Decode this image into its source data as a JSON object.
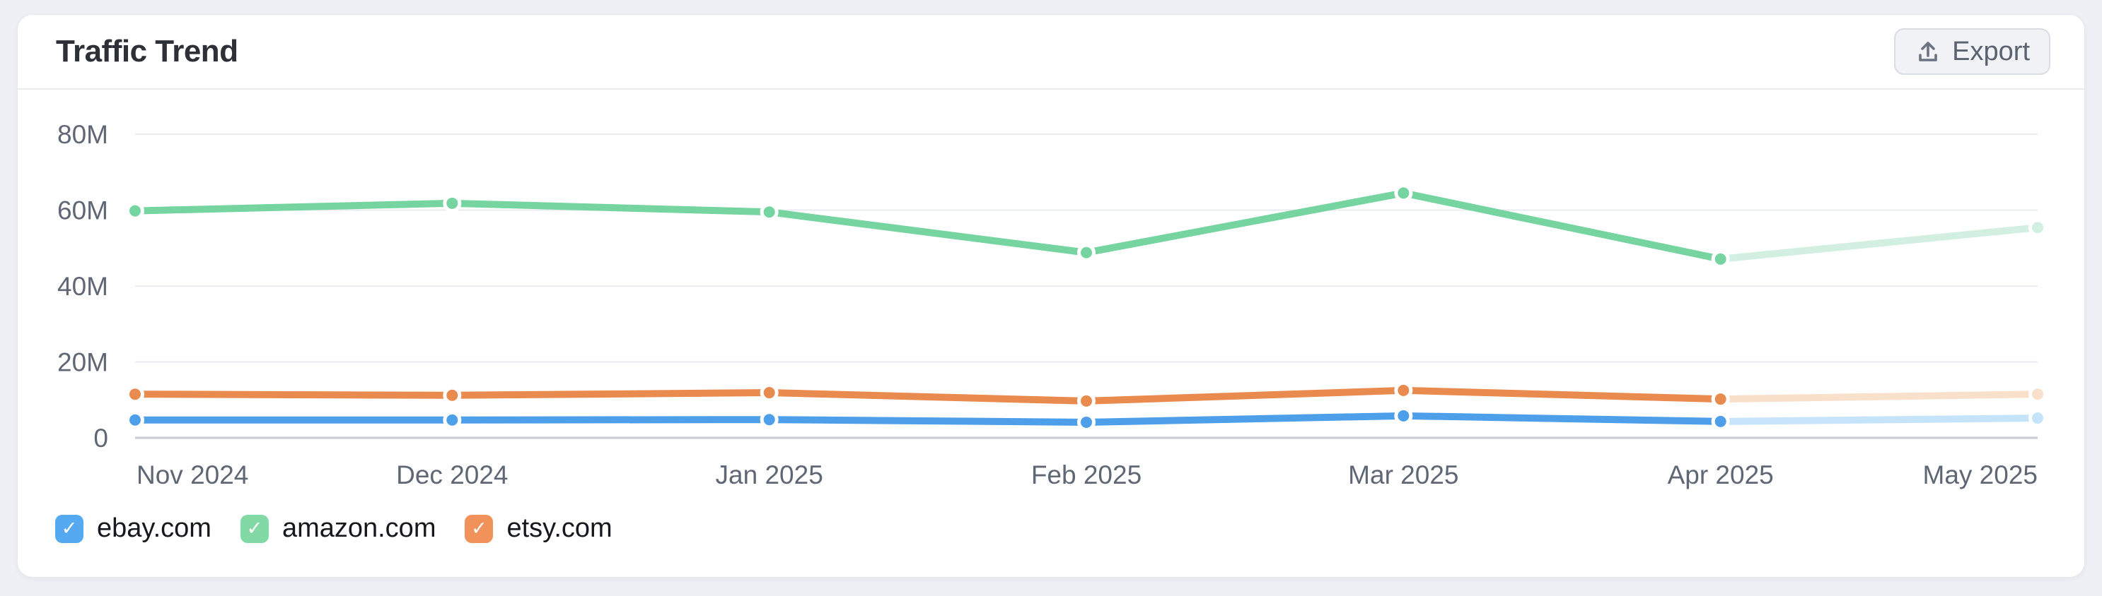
{
  "page": {
    "background_color": "#eef0f5",
    "card_color": "#ffffff"
  },
  "header": {
    "title": "Traffic Trend",
    "export_label": "Export"
  },
  "chart_data": {
    "type": "line",
    "title": "Traffic Trend",
    "x": [
      "Nov 2024",
      "Dec 2024",
      "Jan 2025",
      "Feb 2025",
      "Mar 2025",
      "Apr 2025",
      "May 2025"
    ],
    "y_ticks": [
      "80M",
      "60M",
      "40M",
      "20M",
      "0"
    ],
    "ylim_millions": [
      0,
      80
    ],
    "grid": true,
    "legend_position": "bottom",
    "unit": "visits (millions)",
    "last_point_faded": true,
    "series": [
      {
        "name": "ebay.com",
        "color": "#4d9fe9",
        "faded_color": "#c6e4f9",
        "values_millions": [
          4.7,
          4.7,
          4.8,
          4.1,
          5.8,
          4.3,
          5.2
        ]
      },
      {
        "name": "amazon.com",
        "color": "#76d4a0",
        "faded_color": "#d3efe1",
        "values_millions": [
          59.8,
          61.8,
          59.5,
          48.8,
          64.5,
          47.1,
          55.4
        ]
      },
      {
        "name": "etsy.com",
        "color": "#e98a4f",
        "faded_color": "#f8e0cb",
        "values_millions": [
          11.5,
          11.2,
          11.9,
          9.7,
          12.5,
          10.2,
          11.5
        ]
      }
    ],
    "axis_colors": {
      "gridline": "#e9ebf1",
      "zero_axis": "#c9cdd7",
      "tick_label": "#5f6775"
    }
  },
  "legend": {
    "check_glyph": "✓",
    "items": [
      {
        "label": "ebay.com",
        "checked": true,
        "checkbox_color": "#55a9f0"
      },
      {
        "label": "amazon.com",
        "checked": true,
        "checkbox_color": "#83d9a6"
      },
      {
        "label": "etsy.com",
        "checked": true,
        "checkbox_color": "#f09259"
      }
    ]
  }
}
